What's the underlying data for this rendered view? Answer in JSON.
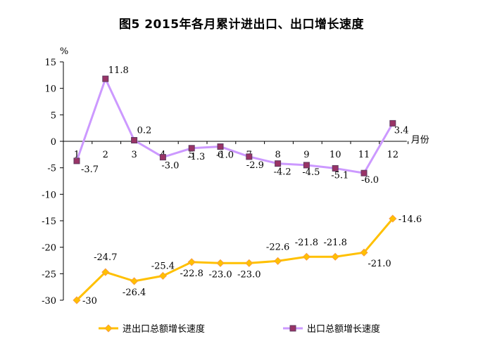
{
  "chart_data": {
    "type": "line",
    "title": "图5 2015年各月累计进出口、出口增长速度",
    "ylabel": "%",
    "xlabel": "月份",
    "categories": [
      "1",
      "2",
      "3",
      "4",
      "5",
      "6",
      "7",
      "8",
      "9",
      "10",
      "11",
      "12"
    ],
    "ylim": [
      -30,
      15
    ],
    "yticks": [
      "15",
      "10",
      "5",
      "0",
      "-5",
      "-10",
      "-15",
      "-20",
      "-25",
      "-30"
    ],
    "ytick_values": [
      15,
      10,
      5,
      0,
      -5,
      -10,
      -15,
      -20,
      -25,
      -30
    ],
    "series": [
      {
        "name": "进出口总额增长速度",
        "color": "#FFC000",
        "marker": "diamond",
        "marker_color": "#FFC000",
        "values": [
          -30.0,
          -24.7,
          -26.4,
          -25.4,
          -22.8,
          -23.0,
          -23.0,
          -22.6,
          -21.8,
          -21.8,
          -21.0,
          -14.6
        ],
        "labels": [
          "-30",
          "-24.7",
          "-26.4",
          "-25.4",
          "-22.8",
          "-23.0",
          "-23.0",
          "-22.6",
          "-21.8",
          "-21.8",
          "-21.0",
          "-14.6"
        ]
      },
      {
        "name": "出口总额增长速度",
        "color": "#CC99FF",
        "marker": "square",
        "marker_color": "#993366",
        "values": [
          -3.7,
          11.8,
          0.2,
          -3.0,
          -1.3,
          -1.0,
          -2.9,
          -4.2,
          -4.5,
          -5.1,
          -6.0,
          3.4
        ],
        "labels": [
          "-3.7",
          "11.8",
          "0.2",
          "-3.0",
          "-1.3",
          "-1.0",
          "-2.9",
          "-4.2",
          "-4.5",
          "-5.1",
          "-6.0",
          "3.4"
        ]
      }
    ],
    "grid": false,
    "legend": "bottom"
  }
}
